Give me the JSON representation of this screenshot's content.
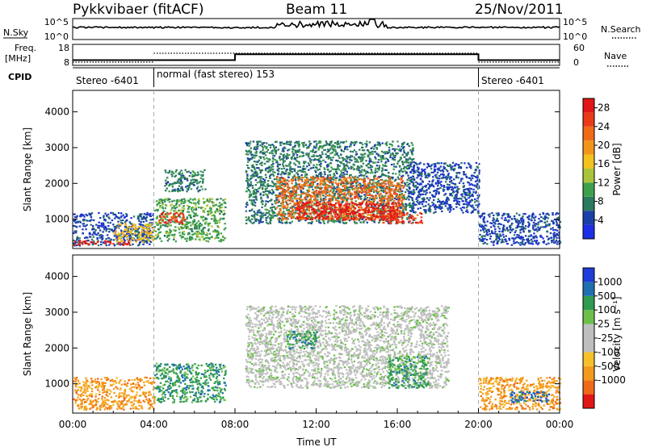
{
  "header": {
    "radar": "Pykkvibaer (fitACF)",
    "beam": "Beam 11",
    "date": "25/Nov/2011"
  },
  "strip": {
    "nsky_label": "N.Sky",
    "nsky_ticks": [
      "10^5",
      "10^0"
    ],
    "nsearch_label": "N.Search",
    "nsearch_ticks": [
      "10^5",
      "10^0"
    ],
    "freq_label_1": "Freq.",
    "freq_label_2": "[MHz]",
    "freq_ticks": [
      "18",
      "8"
    ],
    "nave_label": "Nave",
    "nave_ticks": [
      "60",
      "0"
    ],
    "cpid_label": "CPID",
    "cpid_segments": [
      {
        "label": "Stereo -6401",
        "start_hour": 0,
        "end_hour": 4
      },
      {
        "label": "normal (fast stereo) 153",
        "start_hour": 4,
        "end_hour": 20
      },
      {
        "label": "Stereo -6401",
        "start_hour": 20,
        "end_hour": 24
      }
    ],
    "freq_steps": [
      {
        "start_hour": 0,
        "end_hour": 8,
        "mhz": 10.5
      },
      {
        "start_hour": 8,
        "end_hour": 20,
        "mhz": 13.3
      },
      {
        "start_hour": 20,
        "end_hour": 24,
        "mhz": 10.5
      }
    ]
  },
  "axes": {
    "xlabel": "Time UT",
    "xticks": [
      "00:00",
      "04:00",
      "08:00",
      "12:00",
      "16:00",
      "20:00",
      "00:00"
    ],
    "ylabel": "Slant Range [km]",
    "yticks": [
      "1000",
      "2000",
      "3000",
      "4000"
    ]
  },
  "power_colorbar": {
    "label": "Power [dB]",
    "ticks": [
      "4",
      "8",
      "12",
      "16",
      "20",
      "24",
      "28"
    ],
    "colors": [
      "#1e2ee6",
      "#1a3fa8",
      "#2b7a5e",
      "#3ea04c",
      "#a8c43a",
      "#f2c21f",
      "#f3951b",
      "#f06a18",
      "#ea3a18",
      "#e21616"
    ]
  },
  "velocity_colorbar": {
    "label": "Velocity [m s⁻¹]",
    "ticks": [
      "1000",
      "500",
      "100",
      "25",
      "-25",
      "-100",
      "-500",
      "-1000"
    ],
    "colors": [
      "#1f3bd8",
      "#1f6fb0",
      "#2f9a50",
      "#6cc04a",
      "#bfbfbf",
      "#bfbfbf",
      "#f5c02a",
      "#f39a1c",
      "#ef6a18",
      "#e21616"
    ]
  },
  "chart_data": [
    {
      "type": "heatmap",
      "panel": "power",
      "x_units": "hours UT",
      "y_units": "km",
      "xlim": [
        0,
        24
      ],
      "ylim": [
        180,
        4600
      ],
      "colorbar_range_db": [
        0,
        30
      ],
      "regions": [
        {
          "t0": 0.0,
          "t1": 3.95,
          "r0": 280,
          "r1": 1200,
          "value": 4
        },
        {
          "t0": 0.0,
          "t1": 2.8,
          "r0": 300,
          "r1": 420,
          "value": 28
        },
        {
          "t0": 2.0,
          "t1": 4.0,
          "r0": 380,
          "r1": 900,
          "value": 16
        },
        {
          "t0": 4.0,
          "t1": 7.5,
          "r0": 400,
          "r1": 1600,
          "value": 10
        },
        {
          "t0": 4.2,
          "t1": 5.5,
          "r0": 900,
          "r1": 1200,
          "value": 24
        },
        {
          "t0": 4.5,
          "t1": 6.5,
          "r0": 1800,
          "r1": 2400,
          "value": 6
        },
        {
          "t0": 8.5,
          "t1": 16.8,
          "r0": 900,
          "r1": 3200,
          "value": 8
        },
        {
          "t0": 10.0,
          "t1": 16.3,
          "r0": 1000,
          "r1": 2200,
          "value": 22
        },
        {
          "t0": 11.0,
          "t1": 16.0,
          "r0": 1000,
          "r1": 1500,
          "value": 28
        },
        {
          "t0": 15.2,
          "t1": 17.2,
          "r0": 900,
          "r1": 1200,
          "value": 24
        },
        {
          "t0": 16.5,
          "t1": 20.0,
          "r0": 1200,
          "r1": 2600,
          "value": 5
        },
        {
          "t0": 20.0,
          "t1": 24.0,
          "r0": 300,
          "r1": 1200,
          "value": 4
        }
      ]
    },
    {
      "type": "heatmap",
      "panel": "velocity",
      "x_units": "hours UT",
      "y_units": "km",
      "xlim": [
        0,
        24
      ],
      "ylim": [
        180,
        4600
      ],
      "colorbar_range_ms": [
        -1000,
        1000
      ],
      "regions": [
        {
          "t0": 0.0,
          "t1": 4.0,
          "r0": 300,
          "r1": 1200,
          "value": -150
        },
        {
          "t0": 4.0,
          "t1": 7.5,
          "r0": 500,
          "r1": 1600,
          "value": 150
        },
        {
          "t0": 8.5,
          "t1": 18.5,
          "r0": 900,
          "r1": 3200,
          "value": 0
        },
        {
          "t0": 10.5,
          "t1": 12.0,
          "r0": 2000,
          "r1": 2500,
          "value": 200
        },
        {
          "t0": 15.5,
          "t1": 17.5,
          "r0": 900,
          "r1": 1800,
          "value": 300
        },
        {
          "t0": 20.0,
          "t1": 24.0,
          "r0": 300,
          "r1": 1200,
          "value": -200
        },
        {
          "t0": 21.5,
          "t1": 23.5,
          "r0": 500,
          "r1": 800,
          "value": 600
        }
      ]
    }
  ]
}
